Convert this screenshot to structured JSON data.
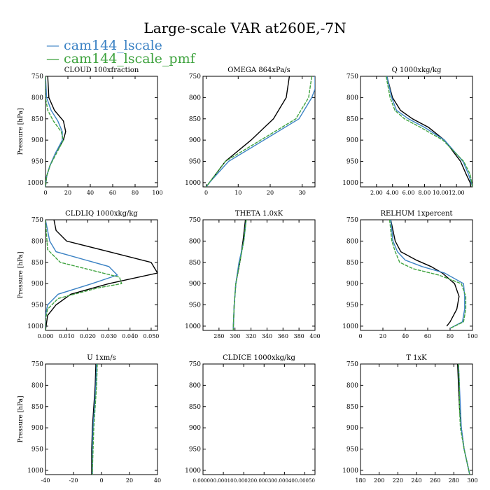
{
  "title": "Large-scale VAR at260E,-7N",
  "legend": [
    {
      "name": "cam144_lscale",
      "color": "#3b82c4"
    },
    {
      "name": "cam144_lscale_pmf",
      "color": "#3fa33f"
    }
  ],
  "ref_color": "#000000",
  "chart_data": [
    {
      "type": "line",
      "title": "CLOUD  100xfraction",
      "ylabel": "Pressure [hPa]",
      "xlim": [
        0,
        100
      ],
      "ylim": [
        750,
        1010
      ],
      "y_reversed": true,
      "xticks": [
        0,
        20,
        40,
        60,
        80,
        100
      ],
      "xticklabels": [
        "0",
        "20",
        "40",
        "60",
        "80",
        "100"
      ],
      "yticks": [
        750,
        800,
        850,
        900,
        950,
        1000
      ],
      "series": [
        {
          "role": "ref",
          "p": [
            750,
            800,
            830,
            855,
            880,
            900,
            930,
            960,
            985,
            1010
          ],
          "x": [
            2,
            3,
            8,
            16,
            18,
            16,
            9,
            4,
            1,
            0
          ]
        },
        {
          "role": "s1",
          "p": [
            750,
            800,
            830,
            855,
            880,
            900,
            930,
            960,
            985,
            1010
          ],
          "x": [
            0,
            1,
            5,
            11,
            15,
            15,
            9,
            4,
            1,
            0
          ]
        },
        {
          "role": "s2",
          "p": [
            750,
            800,
            830,
            855,
            880,
            900,
            930,
            960,
            985,
            1010
          ],
          "x": [
            0,
            0,
            2,
            7,
            14,
            16,
            10,
            4,
            1,
            0
          ]
        }
      ]
    },
    {
      "type": "line",
      "title": "OMEGA  864xPa/s",
      "ylabel": "",
      "xlim": [
        -1,
        34
      ],
      "ylim": [
        750,
        1010
      ],
      "y_reversed": true,
      "xticks": [
        0,
        10,
        20,
        30
      ],
      "xticklabels": [
        "0",
        "10",
        "20",
        "30"
      ],
      "yticks": [
        750,
        800,
        850,
        900,
        950,
        1000
      ],
      "series": [
        {
          "role": "ref",
          "p": [
            750,
            800,
            850,
            900,
            950,
            1000,
            1010
          ],
          "x": [
            26,
            25,
            21,
            14,
            6,
            1,
            0
          ]
        },
        {
          "role": "s1",
          "p": [
            750,
            780,
            800,
            850,
            900,
            950,
            1000,
            1010
          ],
          "x": [
            34,
            34,
            33,
            29,
            18,
            7,
            1,
            0
          ]
        },
        {
          "role": "s2",
          "p": [
            750,
            800,
            850,
            900,
            950,
            1000,
            1010
          ],
          "x": [
            33,
            32,
            28,
            17,
            6,
            1,
            0
          ]
        }
      ]
    },
    {
      "type": "line",
      "title": "Q  1000xkg/kg",
      "ylabel": "",
      "xlim": [
        0,
        14
      ],
      "ylim": [
        750,
        1010
      ],
      "y_reversed": true,
      "xticks": [
        2,
        4,
        6,
        8,
        10,
        12
      ],
      "xticklabels": [
        "2.00",
        "4.00",
        "6.00",
        "8.00",
        "10.00",
        "12.00"
      ],
      "yticks": [
        750,
        800,
        850,
        900,
        950,
        1000
      ],
      "series": [
        {
          "role": "ref",
          "p": [
            750,
            800,
            830,
            850,
            870,
            900,
            950,
            980,
            1000,
            1010
          ],
          "x": [
            3.3,
            4,
            5,
            6.5,
            8.5,
            10.5,
            12.5,
            13.2,
            13.7,
            13.8
          ]
        },
        {
          "role": "s1",
          "p": [
            750,
            800,
            830,
            850,
            870,
            900,
            950,
            980,
            1010
          ],
          "x": [
            3.3,
            3.9,
            4.5,
            6,
            8,
            10.5,
            12.8,
            13.5,
            14
          ]
        },
        {
          "role": "s2",
          "p": [
            750,
            800,
            830,
            850,
            870,
            900,
            950,
            980,
            1010
          ],
          "x": [
            3.2,
            3.7,
            4.3,
            5.5,
            7.5,
            10.3,
            12.9,
            13.7,
            14
          ]
        }
      ]
    },
    {
      "type": "line",
      "title": "CLDLIQ  1000xkg/kg",
      "ylabel": "Pressure [hPa]",
      "xlim": [
        0,
        0.053
      ],
      "ylim": [
        750,
        1010
      ],
      "y_reversed": true,
      "xticks": [
        0,
        0.01,
        0.02,
        0.03,
        0.04,
        0.05
      ],
      "xticklabels": [
        "0.000",
        "0.010",
        "0.020",
        "0.030",
        "0.040",
        "0.050"
      ],
      "yticks": [
        750,
        800,
        850,
        900,
        950,
        1000
      ],
      "series": [
        {
          "role": "ref",
          "p": [
            750,
            775,
            800,
            825,
            850,
            875,
            900,
            925,
            950,
            975,
            1010
          ],
          "x": [
            0.004,
            0.005,
            0.01,
            0.03,
            0.05,
            0.053,
            0.03,
            0.012,
            0.005,
            0.001,
            0
          ]
        },
        {
          "role": "s1",
          "p": [
            750,
            800,
            825,
            860,
            880,
            900,
            925,
            950,
            975,
            1010
          ],
          "x": [
            0,
            0.002,
            0.005,
            0.03,
            0.034,
            0.022,
            0.006,
            0.001,
            0,
            0
          ]
        },
        {
          "role": "s2",
          "p": [
            750,
            820,
            850,
            885,
            900,
            910,
            935,
            960,
            985,
            1010
          ],
          "x": [
            0,
            0.001,
            0.007,
            0.035,
            0.036,
            0.025,
            0.006,
            0.001,
            0,
            0
          ]
        }
      ]
    },
    {
      "type": "line",
      "title": "THETA  1.0xK",
      "ylabel": "",
      "xlim": [
        260,
        400
      ],
      "ylim": [
        750,
        1010
      ],
      "y_reversed": true,
      "xticks": [
        280,
        300,
        320,
        340,
        360,
        380,
        400
      ],
      "xticklabels": [
        "280",
        "300",
        "320",
        "340",
        "360",
        "380",
        "400"
      ],
      "yticks": [
        750,
        800,
        850,
        900,
        950,
        1000
      ],
      "series": [
        {
          "role": "ref",
          "p": [
            750,
            800,
            850,
            900,
            950,
            1000,
            1010
          ],
          "x": [
            313,
            310,
            306,
            301,
            299,
            298,
            298
          ]
        },
        {
          "role": "s1",
          "p": [
            750,
            800,
            850,
            900,
            950,
            1000,
            1010
          ],
          "x": [
            314,
            311,
            305,
            301,
            299,
            298,
            298
          ]
        },
        {
          "role": "s2",
          "p": [
            750,
            800,
            850,
            900,
            950,
            1000,
            1010
          ],
          "x": [
            314,
            311,
            306,
            301,
            299,
            298,
            298
          ]
        }
      ]
    },
    {
      "type": "line",
      "title": "RELHUM  1xpercent",
      "ylabel": "",
      "xlim": [
        0,
        100
      ],
      "ylim": [
        750,
        1010
      ],
      "y_reversed": true,
      "xticks": [
        0,
        20,
        40,
        60,
        80,
        100
      ],
      "xticklabels": [
        "0",
        "20",
        "40",
        "60",
        "80",
        "100"
      ],
      "yticks": [
        750,
        800,
        850,
        900,
        950,
        1000
      ],
      "series": [
        {
          "role": "ref",
          "p": [
            750,
            800,
            825,
            845,
            860,
            875,
            900,
            930,
            960,
            990,
            1000
          ],
          "x": [
            27,
            31,
            36,
            50,
            63,
            73,
            84,
            88,
            86,
            80,
            77
          ]
        },
        {
          "role": "s1",
          "p": [
            750,
            800,
            825,
            845,
            860,
            875,
            900,
            930,
            960,
            990,
            1005
          ],
          "x": [
            27,
            29,
            33,
            40,
            55,
            75,
            92,
            93,
            93,
            91,
            80
          ]
        },
        {
          "role": "s2",
          "p": [
            750,
            800,
            825,
            850,
            865,
            880,
            900,
            930,
            960,
            990,
            1005
          ],
          "x": [
            26,
            28,
            31,
            35,
            47,
            70,
            90,
            94,
            94,
            92,
            80
          ]
        }
      ]
    },
    {
      "type": "line",
      "title": "U  1xm/s",
      "ylabel": "Pressure [hPa]",
      "xlim": [
        -40,
        40
      ],
      "ylim": [
        750,
        1010
      ],
      "y_reversed": true,
      "xticks": [
        -40,
        -20,
        0,
        20,
        40
      ],
      "xticklabels": [
        "-40",
        "-20",
        "0",
        "20",
        "40"
      ],
      "yticks": [
        750,
        800,
        850,
        900,
        950,
        1000
      ],
      "series": [
        {
          "role": "ref",
          "p": [
            750,
            800,
            850,
            900,
            950,
            1000,
            1010
          ],
          "x": [
            -4,
            -4.5,
            -5.5,
            -6.5,
            -7,
            -7,
            -7
          ]
        },
        {
          "role": "s1",
          "p": [
            750,
            800,
            850,
            900,
            950,
            1000,
            1010
          ],
          "x": [
            -3.5,
            -4,
            -5,
            -6,
            -6.5,
            -6.5,
            -6.5
          ]
        },
        {
          "role": "s2",
          "p": [
            750,
            800,
            850,
            900,
            950,
            1000,
            1010
          ],
          "x": [
            -3,
            -3.5,
            -4.5,
            -5.5,
            -6,
            -6.5,
            -6.5
          ]
        }
      ]
    },
    {
      "type": "line",
      "title": "CLDICE  1000xkg/kg",
      "ylabel": "",
      "xlim": [
        0,
        0.00055
      ],
      "ylim": [
        750,
        1010
      ],
      "y_reversed": true,
      "xticks": [
        0,
        0.0001,
        0.0002,
        0.0003,
        0.0004,
        0.0005
      ],
      "xticklabels": [
        "0.00000",
        "0.00010",
        "0.00020",
        "0.00030",
        "0.00040",
        "0.00050"
      ],
      "yticks": [
        750,
        800,
        850,
        900,
        950,
        1000
      ],
      "series": []
    },
    {
      "type": "line",
      "title": "T  1xK",
      "ylabel": "",
      "xlim": [
        180,
        300
      ],
      "ylim": [
        750,
        1010
      ],
      "y_reversed": true,
      "xticks": [
        180,
        200,
        220,
        240,
        260,
        280,
        300
      ],
      "xticklabels": [
        "180",
        "200",
        "220",
        "240",
        "260",
        "280",
        "300"
      ],
      "yticks": [
        750,
        800,
        850,
        900,
        950,
        1000
      ],
      "series": [
        {
          "role": "ref",
          "p": [
            750,
            800,
            850,
            900,
            950,
            1000,
            1010
          ],
          "x": [
            284,
            285,
            286,
            288,
            291,
            296,
            297
          ]
        },
        {
          "role": "s1",
          "p": [
            750,
            800,
            850,
            900,
            950,
            1000,
            1010
          ],
          "x": [
            285,
            286,
            287,
            288,
            291,
            296,
            297
          ]
        },
        {
          "role": "s2",
          "p": [
            750,
            800,
            850,
            900,
            950,
            1000,
            1010
          ],
          "x": [
            285,
            286,
            286,
            287,
            291,
            296,
            297
          ]
        }
      ]
    }
  ]
}
